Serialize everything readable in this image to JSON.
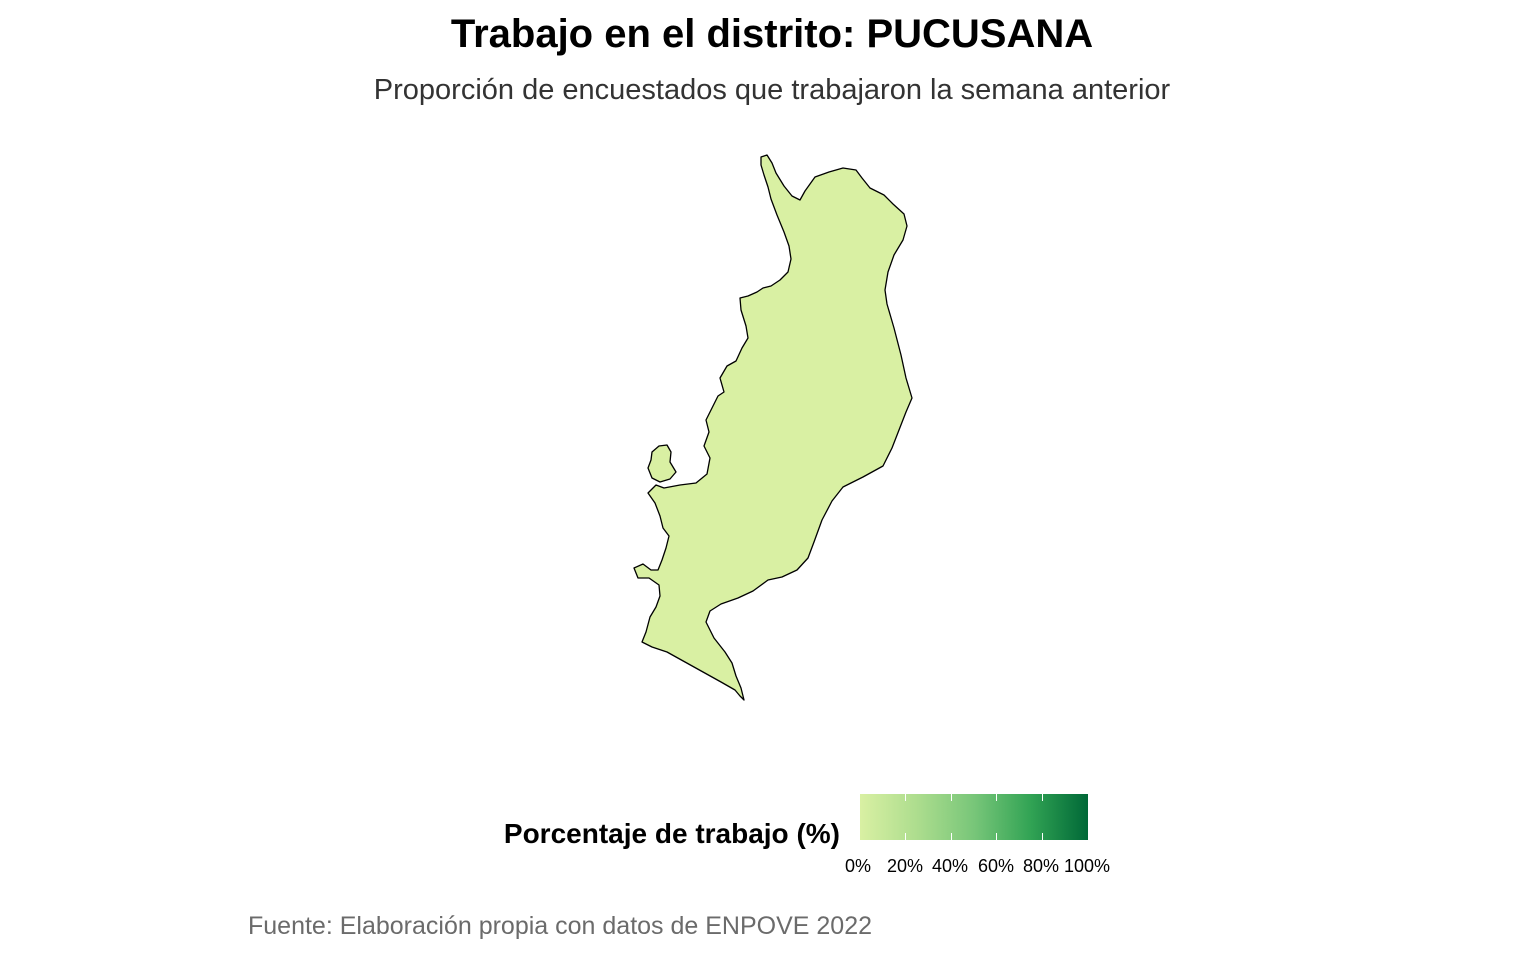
{
  "title": "Trabajo en el distrito: PUCUSANA",
  "subtitle": "Proporción de encuestados que trabajaron la semana anterior",
  "map": {
    "region": "PUCUSANA",
    "fill_color": "#d9f0a3",
    "stroke_color": "#000000"
  },
  "legend": {
    "title": "Porcentaje de trabajo (%)",
    "ticks": [
      "0%",
      "20%",
      "40%",
      "60%",
      "80%",
      "100%"
    ],
    "color_low": "#d9f0a3",
    "color_high": "#006837"
  },
  "caption": "Fuente: Elaboración propia con datos de ENPOVE 2022"
}
